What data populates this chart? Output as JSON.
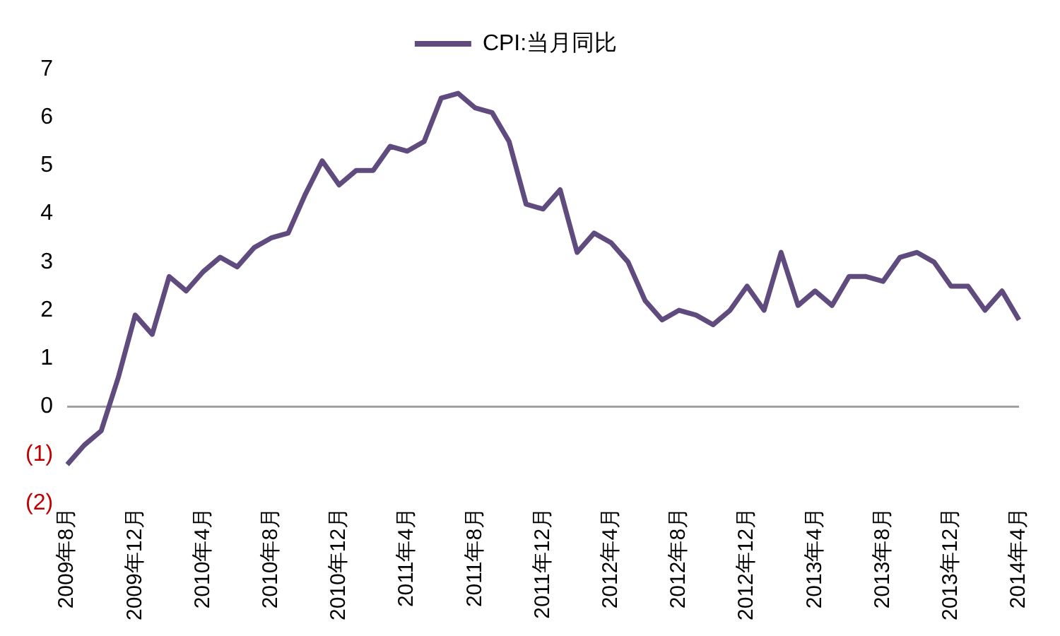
{
  "chart_data": {
    "type": "line",
    "legend": "top",
    "grid": false,
    "marker": "none",
    "line_style": "solid",
    "categories": [
      "2009年8月",
      null,
      null,
      null,
      "2009年12月",
      null,
      null,
      null,
      "2010年4月",
      null,
      null,
      null,
      "2010年8月",
      null,
      null,
      null,
      "2010年12月",
      null,
      null,
      null,
      "2011年4月",
      null,
      null,
      null,
      "2011年8月",
      null,
      null,
      null,
      "2011年12月",
      null,
      null,
      null,
      "2012年4月",
      null,
      null,
      null,
      "2012年8月",
      null,
      null,
      null,
      "2012年12月",
      null,
      null,
      null,
      "2013年4月",
      null,
      null,
      null,
      "2013年8月",
      null,
      null,
      null,
      "2013年12月",
      null,
      null,
      null,
      "2014年4月"
    ],
    "ref_lines": [
      {
        "axis": "y",
        "value": 0,
        "color": "#a0a0a0"
      }
    ],
    "ylim": [
      -2,
      7
    ],
    "yticks": [
      {
        "value": -2,
        "label": "(2)"
      },
      {
        "value": -1,
        "label": "(1)"
      },
      0,
      1,
      2,
      3,
      4,
      5,
      6,
      7
    ],
    "series": [
      {
        "name": "CPI:当月同比",
        "color": "#5f4b7e",
        "values": [
          -1.2,
          -0.8,
          -0.5,
          0.6,
          1.9,
          1.5,
          2.7,
          2.4,
          2.8,
          3.1,
          2.9,
          3.3,
          3.5,
          3.6,
          4.4,
          5.1,
          4.6,
          4.9,
          4.9,
          5.4,
          5.3,
          5.5,
          6.4,
          6.5,
          6.2,
          6.1,
          5.5,
          4.2,
          4.1,
          4.5,
          3.2,
          3.6,
          3.4,
          3.0,
          2.2,
          1.8,
          2.0,
          1.9,
          1.7,
          2.0,
          2.5,
          2.0,
          3.2,
          2.1,
          2.4,
          2.1,
          2.7,
          2.7,
          2.6,
          3.1,
          3.2,
          3.0,
          2.5,
          2.5,
          2.0,
          2.4,
          1.8
        ]
      }
    ]
  }
}
